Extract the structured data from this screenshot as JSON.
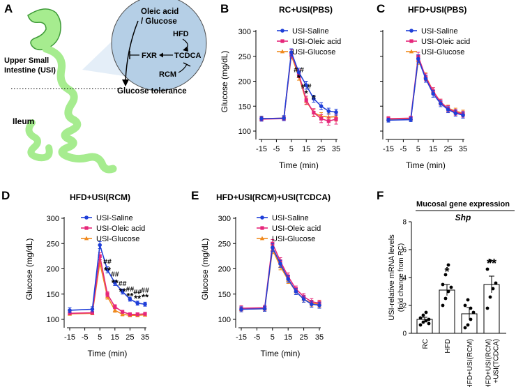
{
  "figure_labels": {
    "a": "A",
    "b": "B",
    "c": "C",
    "d": "D",
    "e": "E",
    "f": "F"
  },
  "colors": {
    "saline": "#1f3fd8",
    "oleic": "#e6267a",
    "glucose": "#f08a1e",
    "axis": "#000000",
    "bar": "#ffffff",
    "intestine": "#a6ec8f",
    "intestine_stroke": "#3e9a38",
    "bubble": "#b5cfe6",
    "bubble_light": "#e1ecf7"
  },
  "schematic": {
    "oleic": "Oleic acid",
    "glucose": "/ Glucose",
    "hfd": "HFD",
    "fxr": "FXR",
    "tcdca": "TCDCA",
    "rcm": "RCM",
    "usi_line1": "Upper Small",
    "usi_line2": "Intestine (USI)",
    "tolerance": "Glucose tolerance",
    "ileum": "Ileum"
  },
  "chart_data": [
    {
      "id": "B",
      "type": "line",
      "title": "RC+USI(PBS)",
      "xlabel": "Time (min)",
      "ylabel": "Glucose (mg/dL)",
      "xlim": [
        -15,
        35
      ],
      "ylim": [
        100,
        300
      ],
      "xticks": [
        "-15",
        "-5",
        "5",
        "15",
        "25",
        "35"
      ],
      "yticks": [
        "100",
        "150",
        "200",
        "250",
        "300"
      ],
      "x": [
        -15,
        0,
        5,
        10,
        15,
        20,
        25,
        30,
        35
      ],
      "legend": [
        "USI-Saline",
        "USI-Oleic acid",
        "USI-Glucose"
      ],
      "series": [
        {
          "name": "USI-Saline",
          "values": [
            125,
            126,
            258,
            218,
            192,
            165,
            150,
            140,
            138
          ],
          "err": [
            5,
            5,
            7,
            8,
            8,
            7,
            7,
            6,
            6
          ]
        },
        {
          "name": "USI-Oleic acid",
          "values": [
            124,
            125,
            255,
            215,
            162,
            137,
            125,
            120,
            124
          ],
          "err": [
            4,
            4,
            8,
            8,
            8,
            8,
            8,
            8,
            10
          ]
        },
        {
          "name": "USI-Glucose",
          "values": [
            125,
            126,
            252,
            210,
            160,
            137,
            130,
            128,
            129
          ],
          "err": [
            4,
            4,
            7,
            8,
            7,
            7,
            7,
            7,
            9
          ]
        }
      ],
      "annotations": [
        {
          "x": 10,
          "y": 218,
          "text": "# #"
        },
        {
          "x": 10,
          "y": 201,
          "text": "*"
        },
        {
          "x": 15,
          "y": 185,
          "text": "# #"
        },
        {
          "x": 15,
          "y": 169,
          "text": "*"
        },
        {
          "x": 20,
          "y": 163,
          "text": "#"
        }
      ]
    },
    {
      "id": "C",
      "type": "line",
      "title": "HFD+USI(PBS)",
      "xlabel": "Time (min)",
      "ylabel": "",
      "xlim": [
        -15,
        35
      ],
      "ylim": [
        100,
        300
      ],
      "xticks": [
        "-15",
        "-5",
        "5",
        "15",
        "25",
        "35"
      ],
      "yticks": [
        "100",
        "150",
        "200",
        "250",
        "300"
      ],
      "x": [
        -15,
        0,
        5,
        10,
        15,
        20,
        25,
        30,
        35
      ],
      "legend": [
        "USI-Saline",
        "USI-Oleic acid",
        "USI-Glucose"
      ],
      "series": [
        {
          "name": "USI-Saline",
          "values": [
            122,
            123,
            245,
            205,
            175,
            155,
            143,
            136,
            132
          ],
          "err": [
            4,
            4,
            8,
            7,
            7,
            6,
            6,
            6,
            6
          ]
        },
        {
          "name": "USI-Oleic acid",
          "values": [
            125,
            126,
            250,
            208,
            180,
            158,
            145,
            138,
            134
          ],
          "err": [
            4,
            4,
            8,
            7,
            7,
            6,
            6,
            6,
            6
          ]
        },
        {
          "name": "USI-Glucose",
          "values": [
            124,
            125,
            242,
            210,
            180,
            158,
            146,
            140,
            136
          ],
          "err": [
            4,
            4,
            8,
            7,
            7,
            6,
            6,
            6,
            6
          ]
        }
      ],
      "annotations": []
    },
    {
      "id": "D",
      "type": "line",
      "title": "HFD+USI(RCM)",
      "xlabel": "Time (min)",
      "ylabel": "Glucose (mg/dL)",
      "xlim": [
        -15,
        35
      ],
      "ylim": [
        100,
        300
      ],
      "xticks": [
        "-15",
        "-5",
        "5",
        "15",
        "25",
        "35"
      ],
      "yticks": [
        "100",
        "150",
        "200",
        "250",
        "300"
      ],
      "x": [
        -15,
        0,
        5,
        10,
        15,
        20,
        25,
        30,
        35
      ],
      "legend": [
        "USI-Saline",
        "USI-Oleic acid",
        "USI-Glucose"
      ],
      "series": [
        {
          "name": "USI-Saline",
          "values": [
            118,
            120,
            247,
            198,
            172,
            155,
            140,
            132,
            130
          ],
          "err": [
            5,
            5,
            7,
            6,
            5,
            5,
            4,
            4,
            4
          ]
        },
        {
          "name": "USI-Oleic acid",
          "values": [
            112,
            113,
            225,
            150,
            125,
            115,
            110,
            110,
            111
          ],
          "err": [
            3,
            3,
            7,
            5,
            4,
            3,
            3,
            3,
            3
          ]
        },
        {
          "name": "USI-Glucose",
          "values": [
            111,
            112,
            212,
            145,
            118,
            110,
            108,
            108,
            109
          ],
          "err": [
            3,
            3,
            7,
            5,
            4,
            3,
            3,
            3,
            3
          ]
        }
      ],
      "annotations": [
        {
          "x": 10,
          "y": 210,
          "text": "##"
        },
        {
          "x": 10,
          "y": 191,
          "text": "**"
        },
        {
          "x": 15,
          "y": 185,
          "text": "##"
        },
        {
          "x": 15,
          "y": 166,
          "text": "**"
        },
        {
          "x": 20,
          "y": 166,
          "text": "##"
        },
        {
          "x": 20,
          "y": 149,
          "text": "**"
        },
        {
          "x": 25,
          "y": 155,
          "text": "##"
        },
        {
          "x": 25,
          "y": 140,
          "text": "**"
        },
        {
          "x": 30,
          "y": 150,
          "text": "##"
        },
        {
          "x": 30,
          "y": 135,
          "text": "**"
        },
        {
          "x": 35,
          "y": 153,
          "text": "##"
        },
        {
          "x": 35,
          "y": 138,
          "text": "**"
        }
      ]
    },
    {
      "id": "E",
      "type": "line",
      "title": "HFD+USI(RCM)+USI(TCDCA)",
      "xlabel": "Time (min)",
      "ylabel": "Glucose (mg/dL)",
      "xlim": [
        -15,
        35
      ],
      "ylim": [
        100,
        300
      ],
      "xticks": [
        "-15",
        "-5",
        "5",
        "15",
        "25",
        "35"
      ],
      "yticks": [
        "100",
        "150",
        "200",
        "250",
        "300"
      ],
      "x": [
        -15,
        0,
        5,
        10,
        15,
        20,
        25,
        30,
        35
      ],
      "legend": [
        "USI-Saline",
        "USI-Oleic acid",
        "USI-Glucose"
      ],
      "series": [
        {
          "name": "USI-Saline",
          "values": [
            120,
            121,
            242,
            210,
            180,
            155,
            140,
            130,
            128
          ],
          "err": [
            5,
            5,
            8,
            7,
            7,
            6,
            6,
            6,
            6
          ]
        },
        {
          "name": "USI-Oleic acid",
          "values": [
            122,
            123,
            250,
            215,
            185,
            160,
            145,
            135,
            132
          ],
          "err": [
            5,
            5,
            8,
            7,
            7,
            6,
            6,
            6,
            6
          ]
        },
        {
          "name": "USI-Glucose",
          "values": [
            120,
            121,
            238,
            205,
            178,
            155,
            140,
            132,
            130
          ],
          "err": [
            5,
            5,
            8,
            7,
            7,
            6,
            6,
            6,
            6
          ]
        }
      ],
      "annotations": []
    },
    {
      "id": "F",
      "type": "bar",
      "header": "Mucosal gene expression",
      "title": "Shp",
      "ylabel": "USI-relative mRNA levels",
      "ylabel2": "(fold change from RC)",
      "ylim": [
        0,
        8
      ],
      "yticks": [
        "0",
        "2",
        "4",
        "6",
        "8"
      ],
      "categories": [
        "RC",
        "HFD",
        "HFD+USI(RCM)",
        "HFD+USI(RCM)+USI(TCDCA)"
      ],
      "category_lines": [
        [
          "RC"
        ],
        [
          "HFD"
        ],
        [
          "HFD+USI(RCM)"
        ],
        [
          "HFD+USI(RCM)",
          "+USI(TCDCA)"
        ]
      ],
      "values": [
        1.0,
        3.1,
        1.4,
        3.5
      ],
      "err": [
        0.15,
        0.4,
        0.45,
        0.6
      ],
      "points": [
        [
          0.6,
          0.8,
          0.9,
          1.0,
          1.1,
          1.3,
          1.5,
          0.7
        ],
        [
          2.0,
          2.5,
          3.0,
          3.3,
          3.5,
          4.2,
          4.9
        ],
        [
          0.4,
          0.6,
          1.0,
          1.5,
          2.0,
          2.4,
          1.8
        ],
        [
          1.8,
          2.6,
          3.2,
          3.6,
          4.6,
          5.2
        ]
      ],
      "significance": [
        "",
        "*",
        "",
        "**"
      ]
    }
  ]
}
